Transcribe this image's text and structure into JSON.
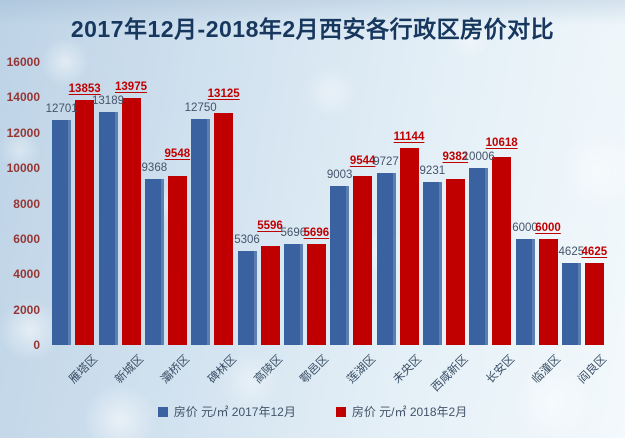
{
  "title": "2017年12月-2018年2月西安各行政区房价对比",
  "chart_data": {
    "type": "bar",
    "title": "2017年12月-2018年2月西安各行政区房价对比",
    "categories": [
      "雁塔区",
      "新城区",
      "灞桥区",
      "碑林区",
      "高陵区",
      "鄠邑区",
      "莲湖区",
      "未央区",
      "西咸新区",
      "长安区",
      "临潼区",
      "阎良区"
    ],
    "series": [
      {
        "name": "房价 元/㎡ 2017年12月",
        "color": "#3a62a0",
        "values": [
          12701,
          13189,
          9368,
          12750,
          5306,
          5696,
          9003,
          9727,
          9231,
          10006,
          6000,
          4625
        ]
      },
      {
        "name": "房价 元/㎡ 2018年2月",
        "color": "#c00000",
        "values": [
          13853,
          13975,
          9548,
          13125,
          5596,
          5696,
          9544,
          11144,
          9382,
          10618,
          6000,
          4625
        ]
      }
    ],
    "xlabel": "",
    "ylabel": "",
    "ylim": [
      0,
      16000
    ],
    "ytick_step": 2000,
    "grid": false,
    "legend_position": "bottom"
  },
  "styles": {
    "title_color": "#17375e",
    "ytick_color": "#963634",
    "xtick_color": "#3a4f66",
    "label_color_2017": "#44546a",
    "label_color_2018": "#c00000"
  }
}
